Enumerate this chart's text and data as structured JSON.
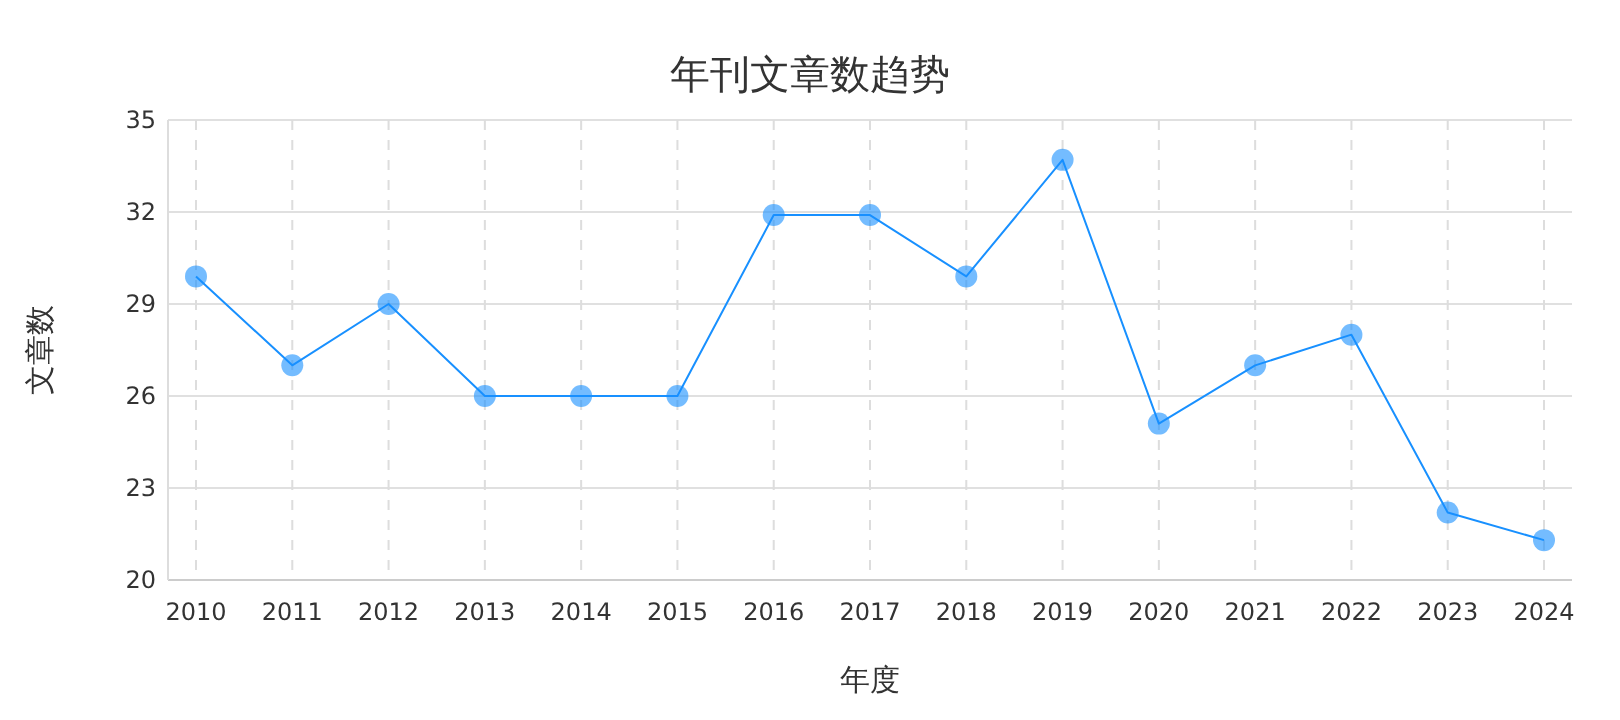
{
  "chart_data": {
    "type": "line",
    "title": "年刊文章数趋势",
    "xlabel": "年度",
    "ylabel": "文章数",
    "categories": [
      "2010",
      "2011",
      "2012",
      "2013",
      "2014",
      "2015",
      "2016",
      "2017",
      "2018",
      "2019",
      "2020",
      "2021",
      "2022",
      "2023",
      "2024"
    ],
    "series": [
      {
        "color": "#1890ff",
        "values": [
          29.9,
          27.0,
          29.0,
          26.0,
          26.0,
          26.0,
          31.9,
          31.9,
          29.9,
          33.7,
          25.1,
          27.0,
          28.0,
          22.2,
          21.3
        ]
      }
    ],
    "ylim": [
      20,
      35
    ],
    "yticks": [
      20,
      23,
      26,
      29,
      32,
      35
    ],
    "grid": true,
    "marker": "circle",
    "line_style": "solid"
  }
}
